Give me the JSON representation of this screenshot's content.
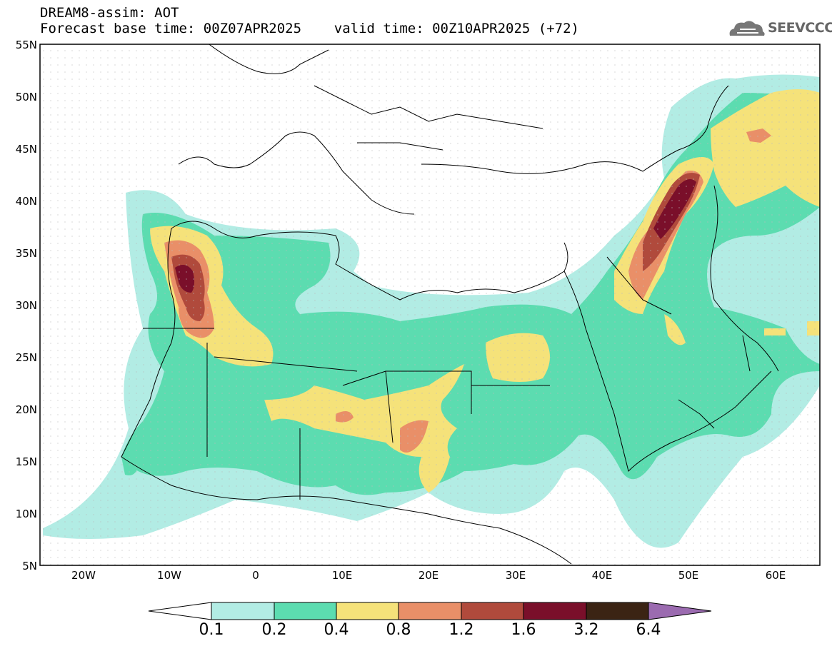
{
  "header": {
    "line1": "DREAM8-assim: AOT",
    "line2": "Forecast base time: 00Z07APR2025    valid time: 00Z10APR2025 (+72)",
    "logo_text": "SEEVCCC",
    "logo_icon": "cloud-logo-icon"
  },
  "map": {
    "lon_range": [
      -25,
      65
    ],
    "lat_range": [
      5,
      55
    ],
    "y_ticks": [
      "55N",
      "50N",
      "45N",
      "40N",
      "35N",
      "30N",
      "25N",
      "20N",
      "15N",
      "10N",
      "5N"
    ],
    "x_ticks": [
      "20W",
      "10W",
      "0",
      "10E",
      "20E",
      "30E",
      "40E",
      "50E",
      "60E"
    ]
  },
  "colorbar": {
    "labels": [
      "0.1",
      "0.2",
      "0.4",
      "0.8",
      "1.2",
      "1.6",
      "3.2",
      "6.4"
    ],
    "colors": [
      "#b2ece4",
      "#5cdcb0",
      "#f5e27a",
      "#e98f68",
      "#b04a3c",
      "#7a0f2a",
      "#3b2414",
      "#9b6bb0"
    ]
  }
}
